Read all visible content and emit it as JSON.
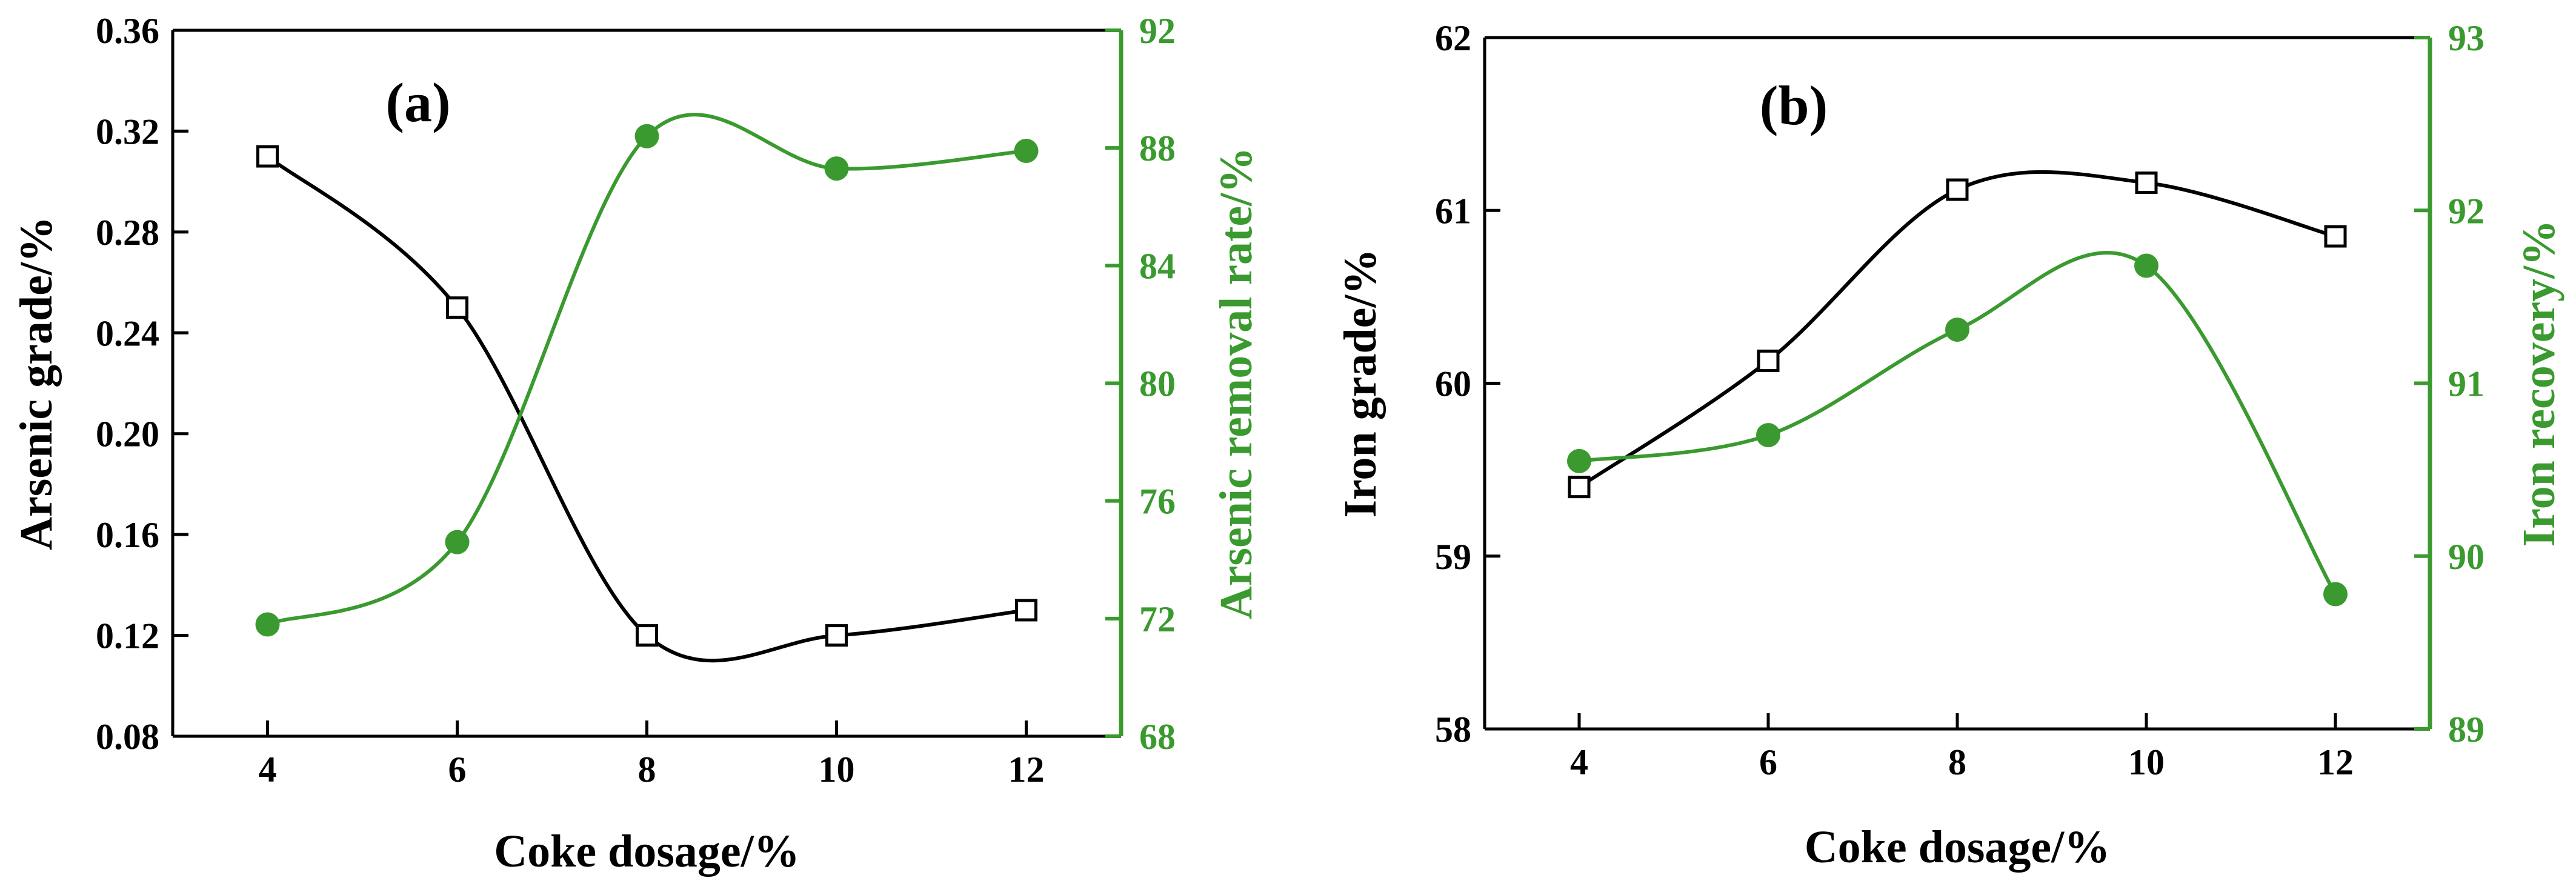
{
  "chart_data": [
    {
      "type": "line",
      "panel_label": "(a)",
      "xlabel": "Coke dosage/%",
      "ylabel": "Arsenic grade/%",
      "y2label": "Arsenic removal rate/%",
      "x": [
        4,
        6,
        8,
        10,
        12
      ],
      "xticks": [
        "4",
        "6",
        "8",
        "10",
        "12"
      ],
      "xlim": [
        3,
        13
      ],
      "ylim": [
        0.08,
        0.36
      ],
      "yticks": [
        "0.08",
        "0.12",
        "0.16",
        "0.20",
        "0.24",
        "0.28",
        "0.32",
        "0.36"
      ],
      "y2lim": [
        68,
        92
      ],
      "y2ticks": [
        "68",
        "72",
        "76",
        "80",
        "84",
        "88",
        "92"
      ],
      "grid": false,
      "legend": "none",
      "series": [
        {
          "axis": "left",
          "marker": "open-square",
          "color": "#000000",
          "values": [
            0.31,
            0.25,
            0.12,
            0.12,
            0.13
          ]
        },
        {
          "axis": "right",
          "marker": "filled-circle",
          "color": "#3a9a2f",
          "values": [
            71.8,
            74.6,
            88.4,
            87.3,
            87.9
          ]
        }
      ]
    },
    {
      "type": "line",
      "panel_label": "(b)",
      "xlabel": "Coke dosage/%",
      "ylabel": "Iron grade/%",
      "y2label": "Iron recovery/%",
      "x": [
        4,
        6,
        8,
        10,
        12
      ],
      "xticks": [
        "4",
        "6",
        "8",
        "10",
        "12"
      ],
      "xlim": [
        3,
        13
      ],
      "ylim": [
        58,
        62
      ],
      "yticks": [
        "58",
        "59",
        "60",
        "61",
        "62"
      ],
      "y2lim": [
        89,
        93
      ],
      "y2ticks": [
        "89",
        "90",
        "91",
        "92",
        "93"
      ],
      "grid": false,
      "legend": "none",
      "series": [
        {
          "axis": "left",
          "marker": "open-square",
          "color": "#000000",
          "values": [
            59.4,
            60.13,
            61.12,
            61.16,
            60.85
          ]
        },
        {
          "axis": "right",
          "marker": "filled-circle",
          "color": "#3a9a2f",
          "values": [
            90.55,
            90.7,
            91.31,
            91.68,
            89.78
          ]
        }
      ]
    }
  ]
}
